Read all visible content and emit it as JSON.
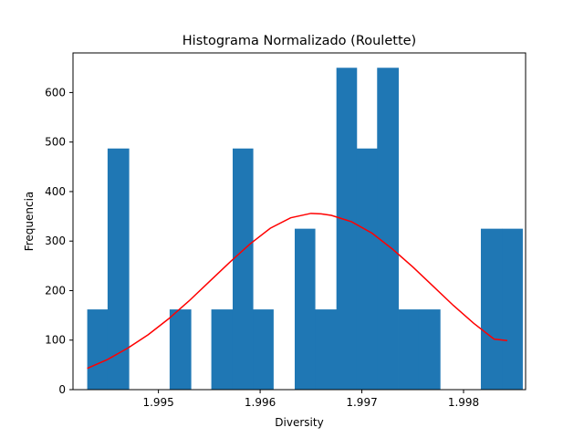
{
  "chart_data": {
    "type": "bar",
    "title": "Histograma Normalizado (Roulette)",
    "xlabel": "Diversity",
    "ylabel": "Frequencia",
    "xlim": [
      1.99416,
      1.99861
    ],
    "ylim": [
      0,
      680
    ],
    "xticks": [
      1.995,
      1.996,
      1.997,
      1.998
    ],
    "xtick_labels": [
      "1.995",
      "1.996",
      "1.997",
      "1.998"
    ],
    "yticks": [
      0,
      100,
      200,
      300,
      400,
      500,
      600
    ],
    "ytick_labels": [
      "0",
      "100",
      "200",
      "300",
      "400",
      "500",
      "600"
    ],
    "grid": false,
    "bar_color": "#1f77b4",
    "curve_color": "#ff0000",
    "bins": {
      "edges": [
        1.9943,
        1.9945,
        1.99471,
        1.99491,
        1.99511,
        1.99532,
        1.99552,
        1.99573,
        1.99593,
        1.99613,
        1.99634,
        1.99654,
        1.99675,
        1.99695,
        1.99715,
        1.99736,
        1.99756,
        1.99777,
        1.99797,
        1.99817,
        1.99838
      ],
      "values": [
        162,
        487,
        0,
        0,
        162,
        0,
        162,
        487,
        162,
        0,
        325,
        162,
        650,
        487,
        650,
        162,
        162,
        0,
        0,
        325,
        325
      ]
    },
    "series": [
      {
        "name": "",
        "type": "line",
        "x": [
          1.9943,
          1.9945,
          1.9947,
          1.9949,
          1.9951,
          1.9953,
          1.9955,
          1.9957,
          1.9959,
          1.9961,
          1.9963,
          1.9965,
          1.9966,
          1.9967,
          1.9969,
          1.9971,
          1.9973,
          1.9975,
          1.9977,
          1.9979,
          1.9981,
          1.9983,
          1.99843
        ],
        "y": [
          43,
          61,
          84,
          111,
          143,
          179,
          218,
          257,
          294,
          326,
          347,
          356,
          355,
          352,
          339,
          316,
          284,
          248,
          209,
          170,
          134,
          102,
          99
        ]
      }
    ]
  }
}
